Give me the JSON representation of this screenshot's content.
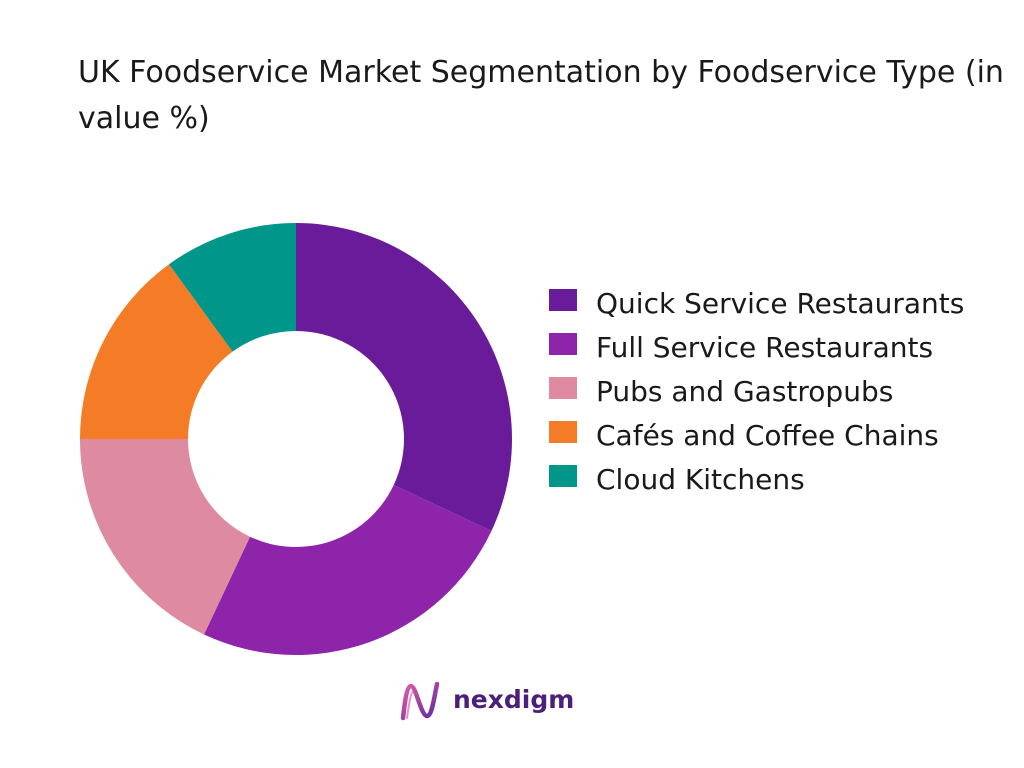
{
  "title": "UK Foodservice Market Segmentation by Foodservice Type (in value %)",
  "chart_data": {
    "type": "pie",
    "style": "donut",
    "title": "UK Foodservice Market Segmentation by Foodservice Type (in value %)",
    "categories": [
      "Quick Service Restaurants",
      "Full Service Restaurants",
      "Pubs and Gastropubs",
      "Cafés and Coffee Chains",
      "Cloud Kitchens"
    ],
    "values": [
      32,
      25,
      18,
      15,
      10
    ],
    "colors": [
      "#6a1b9a",
      "#8e24aa",
      "#de8aa0",
      "#f47c26",
      "#00968a"
    ],
    "legend_position": "right",
    "data_labels": false
  },
  "logo": {
    "text": "nexdigm",
    "icon": "nexdigm-logo-icon",
    "color": "#4b1f7a"
  }
}
